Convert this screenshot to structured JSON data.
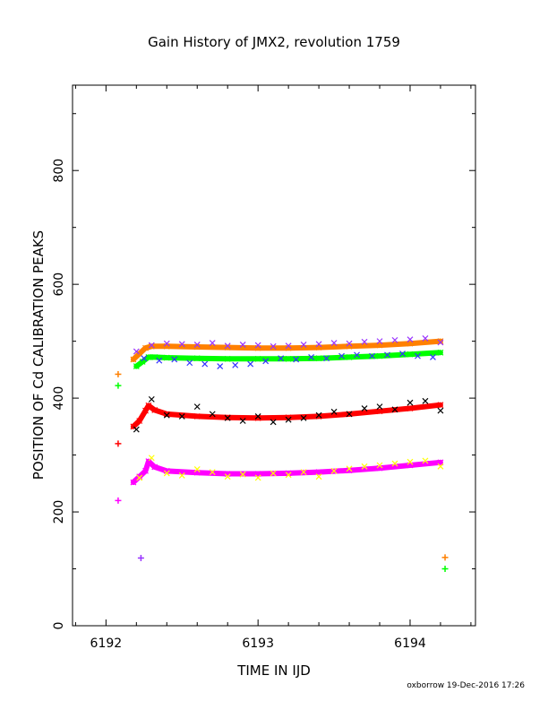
{
  "chart_data": {
    "type": "scatter",
    "title": "Gain History of JMX2, revolution 1759",
    "xlabel": "TIME IN IJD",
    "ylabel": "POSITION OF Cd CALIBRATION PEAKS",
    "xlim": [
      6191.78,
      6194.43
    ],
    "ylim": [
      0,
      950
    ],
    "x_ticks": [
      6192,
      6193,
      6194
    ],
    "y_ticks": [
      0,
      200,
      400,
      600,
      800
    ],
    "grid": false,
    "legend": "none",
    "credit": "oxborrow 19-Dec-2016 17:26",
    "colors": {
      "purple": "#9933ff",
      "blue": "#3333ff",
      "orange": "#ff8000",
      "green": "#00ff00",
      "black": "#000000",
      "red": "#ff0000",
      "yellow": "#ffff00",
      "magenta": "#ff00ff"
    },
    "series": [
      {
        "color": "orange",
        "marker": "fit",
        "x": [
          6192.18,
          6192.22,
          6192.26,
          6192.3,
          6192.4,
          6192.6,
          6192.8,
          6193.0,
          6193.2,
          6193.4,
          6193.6,
          6193.8,
          6194.0,
          6194.2
        ],
        "y": [
          468,
          478,
          488,
          491,
          491,
          490,
          489,
          488,
          488,
          489,
          491,
          493,
          496,
          500
        ]
      },
      {
        "color": "green",
        "marker": "fit",
        "x": [
          6192.2,
          6192.24,
          6192.28,
          6192.32,
          6192.4,
          6192.6,
          6192.8,
          6193.0,
          6193.2,
          6193.4,
          6193.6,
          6193.8,
          6194.0,
          6194.2
        ],
        "y": [
          456,
          464,
          472,
          472,
          471,
          470,
          469,
          469,
          469,
          470,
          472,
          474,
          477,
          480
        ]
      },
      {
        "color": "red",
        "marker": "fit",
        "x": [
          6192.18,
          6192.22,
          6192.26,
          6192.28,
          6192.32,
          6192.4,
          6192.6,
          6192.8,
          6193.0,
          6193.2,
          6193.4,
          6193.6,
          6193.8,
          6194.0,
          6194.2
        ],
        "y": [
          350,
          360,
          378,
          387,
          379,
          372,
          368,
          366,
          365,
          366,
          368,
          372,
          377,
          382,
          388
        ]
      },
      {
        "color": "magenta",
        "marker": "fit",
        "x": [
          6192.18,
          6192.22,
          6192.26,
          6192.28,
          6192.32,
          6192.4,
          6192.6,
          6192.8,
          6193.0,
          6193.2,
          6193.4,
          6193.6,
          6193.8,
          6194.0,
          6194.2
        ],
        "y": [
          252,
          262,
          272,
          289,
          279,
          272,
          269,
          267,
          267,
          268,
          270,
          273,
          277,
          282,
          287
        ]
      },
      {
        "color": "purple",
        "marker": "cross",
        "x": [
          6192.2,
          6192.3,
          6192.4,
          6192.5,
          6192.6,
          6192.7,
          6192.8,
          6192.9,
          6193.0,
          6193.1,
          6193.2,
          6193.3,
          6193.4,
          6193.5,
          6193.6,
          6193.7,
          6193.8,
          6193.9,
          6194.0,
          6194.1,
          6194.2
        ],
        "y": [
          482,
          493,
          496,
          495,
          494,
          497,
          492,
          494,
          493,
          491,
          492,
          494,
          495,
          497,
          496,
          499,
          500,
          502,
          503,
          505,
          498
        ]
      },
      {
        "color": "blue",
        "marker": "cross",
        "x": [
          6192.25,
          6192.35,
          6192.45,
          6192.55,
          6192.65,
          6192.75,
          6192.85,
          6192.95,
          6193.05,
          6193.15,
          6193.25,
          6193.35,
          6193.45,
          6193.55,
          6193.65,
          6193.75,
          6193.85,
          6193.95,
          6194.05,
          6194.15
        ],
        "y": [
          470,
          466,
          468,
          462,
          460,
          456,
          458,
          460,
          465,
          470,
          468,
          472,
          470,
          474,
          476,
          474,
          476,
          478,
          474,
          472
        ]
      },
      {
        "color": "black",
        "marker": "cross",
        "x": [
          6192.2,
          6192.3,
          6192.4,
          6192.5,
          6192.6,
          6192.7,
          6192.8,
          6192.9,
          6193.0,
          6193.1,
          6193.2,
          6193.3,
          6193.4,
          6193.5,
          6193.6,
          6193.7,
          6193.8,
          6193.9,
          6194.0,
          6194.1,
          6194.2
        ],
        "y": [
          345,
          398,
          370,
          368,
          385,
          372,
          365,
          360,
          368,
          358,
          362,
          365,
          370,
          376,
          372,
          382,
          385,
          380,
          392,
          395,
          378
        ]
      },
      {
        "color": "yellow",
        "marker": "cross",
        "x": [
          6192.22,
          6192.3,
          6192.4,
          6192.5,
          6192.6,
          6192.7,
          6192.8,
          6192.9,
          6193.0,
          6193.1,
          6193.2,
          6193.3,
          6193.4,
          6193.5,
          6193.6,
          6193.7,
          6193.8,
          6193.9,
          6194.0,
          6194.1,
          6194.2
        ],
        "y": [
          260,
          295,
          268,
          264,
          275,
          270,
          262,
          266,
          260,
          268,
          265,
          270,
          262,
          272,
          276,
          280,
          282,
          285,
          288,
          290,
          280
        ]
      },
      {
        "color": "orange",
        "marker": "plus",
        "x": [
          6192.08,
          6194.23
        ],
        "y": [
          442,
          120
        ]
      },
      {
        "color": "green",
        "marker": "plus",
        "x": [
          6192.08,
          6194.23
        ],
        "y": [
          422,
          100
        ]
      },
      {
        "color": "red",
        "marker": "plus",
        "x": [
          6192.08
        ],
        "y": [
          320
        ]
      },
      {
        "color": "magenta",
        "marker": "plus",
        "x": [
          6192.08
        ],
        "y": [
          220
        ]
      },
      {
        "color": "purple",
        "marker": "plus",
        "x": [
          6192.23
        ],
        "y": [
          119
        ]
      }
    ]
  }
}
